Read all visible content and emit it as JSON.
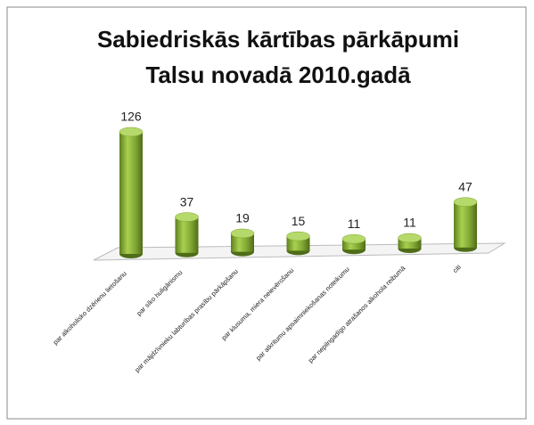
{
  "chart_data": {
    "type": "bar3d",
    "title": "Sabiedriskās kārtības pārkāpumi",
    "subtitle": "Talsu novadā 2010.gadā",
    "categories": [
      "par alkoholisko dzērienu lietošanu",
      "par sīko huligānismu",
      "par mājdzīvnieku labturības prasību pārkāpšanu",
      "par klusuma, miera neievērošanu",
      "par atkritumu apsaimniekošanas noteikumu",
      "par nepilngadīgo atrašanos alkohola reibumā",
      "citi"
    ],
    "values": [
      126,
      37,
      19,
      15,
      11,
      11,
      47
    ],
    "color": "#8cb33a"
  }
}
